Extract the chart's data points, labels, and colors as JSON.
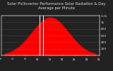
{
  "title": "Solar PV/Inverter Performance Solar Radiation & Day Average per Minute",
  "bg_color": "#222222",
  "plot_bg_color": "#222222",
  "fill_color": "#ff0000",
  "line_color": "#cc0000",
  "grid_color": "#aaaaaa",
  "grid_alpha": 0.5,
  "grid_linestyle": ":",
  "y_max": 1200,
  "y_ticks": [
    200,
    400,
    600,
    800,
    1000,
    1200
  ],
  "y_tick_labels": [
    "200",
    "400",
    "600",
    "800",
    "1k",
    "1.2k"
  ],
  "x_min": 4,
  "x_max": 20,
  "peak_hour": 12,
  "start_hour": 4.5,
  "end_hour": 19.5,
  "peak_value": 1150,
  "white_line1": 10.3,
  "white_line2": 10.8,
  "title_fontsize": 3.8,
  "tick_fontsize": 3.2,
  "text_color": "#dddddd",
  "x_ticks": [
    4,
    6,
    8,
    10,
    12,
    14,
    16,
    18,
    20
  ],
  "x_tick_labels": [
    "4",
    "6",
    "8",
    "10",
    "12",
    "14",
    "16",
    "18",
    "20"
  ]
}
